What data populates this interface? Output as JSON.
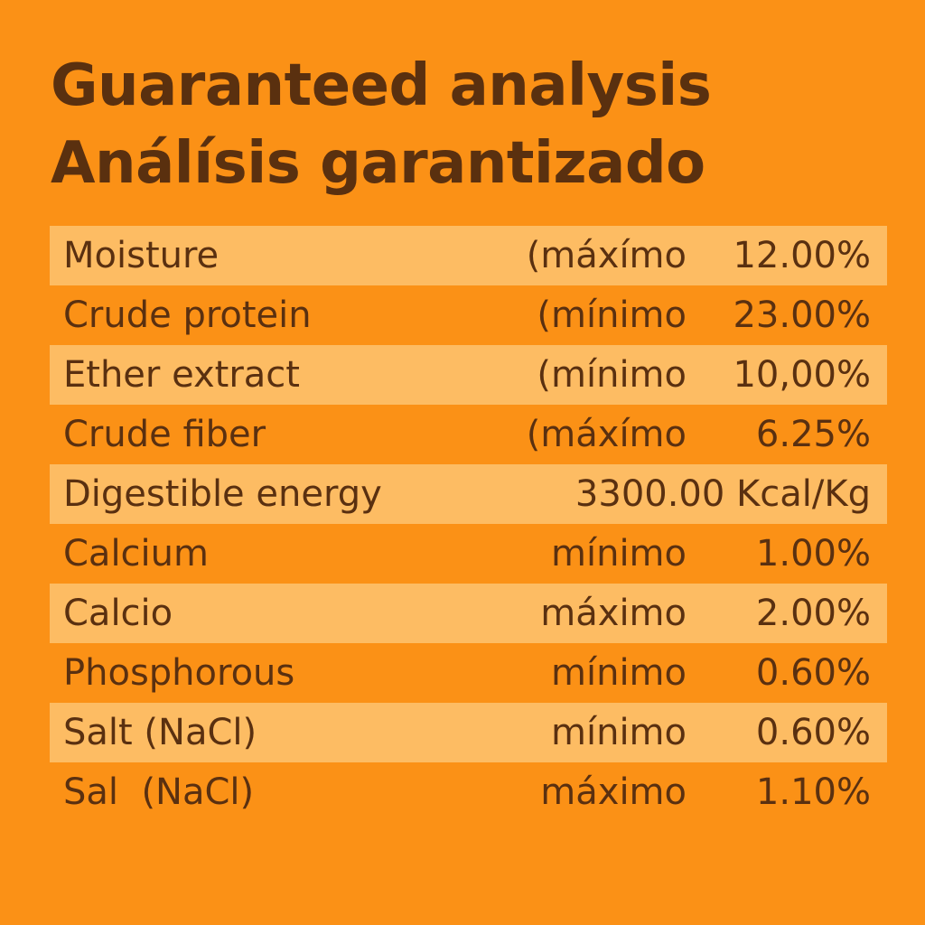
{
  "title": {
    "line1": "Guaranteed analysis",
    "line2": "Análísis garantizado"
  },
  "colors": {
    "background": "#fb9116",
    "row_highlight": "#fdbc63",
    "text": "#5a3010"
  },
  "rows": [
    {
      "label": "Moisture",
      "qualifier": "(máxímo",
      "value": "12.00%"
    },
    {
      "label": "Crude protein",
      "qualifier": "(mínimo",
      "value": "23.00%"
    },
    {
      "label": "Ether extract",
      "qualifier": "(mínimo",
      "value": "10,00%"
    },
    {
      "label": "Crude fiber",
      "qualifier": "(máxímo",
      "value": "6.25%"
    },
    {
      "label": "Digestible energy",
      "value": "3300.00 Kcal/Kg"
    },
    {
      "label": "Calcium",
      "qualifier": "mínimo",
      "value": "1.00%"
    },
    {
      "label": "Calcio",
      "qualifier": "máximo",
      "value": "2.00%"
    },
    {
      "label": "Phosphorous",
      "qualifier": "mínimo",
      "value": "0.60%"
    },
    {
      "label": "Salt (NaCl)",
      "qualifier": "mínimo",
      "value": "0.60%"
    },
    {
      "label": "Sal  (NaCl)",
      "qualifier": "máximo",
      "value": "1.10%"
    }
  ]
}
